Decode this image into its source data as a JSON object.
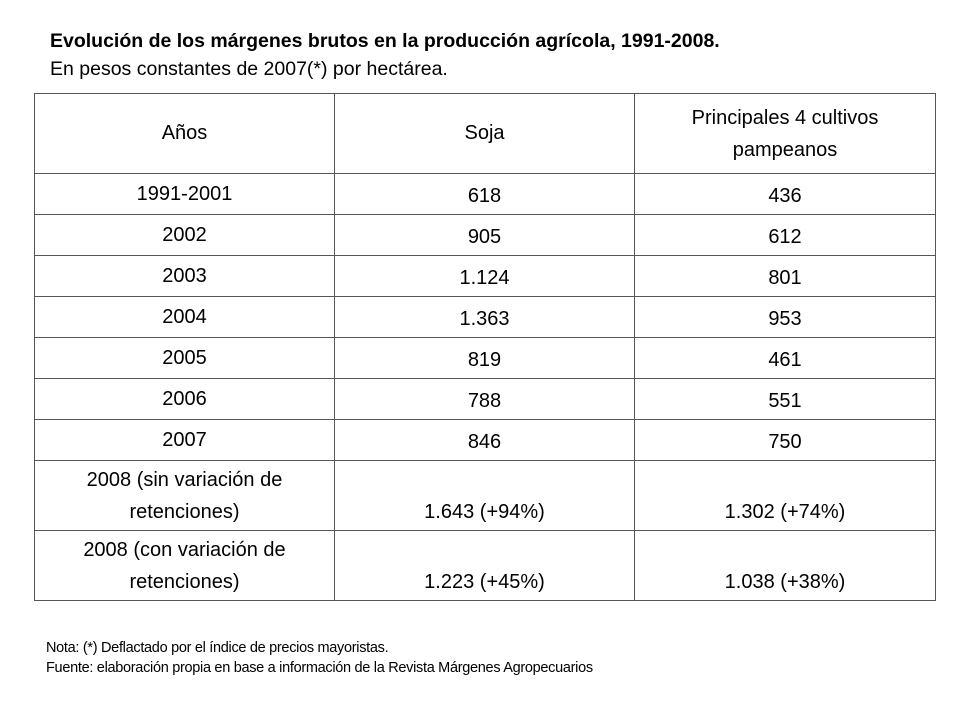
{
  "title": {
    "bold": "Evolución de los márgenes brutos en la producción agrícola, 1991-2008.",
    "subtitle": "En pesos constantes de 2007(*) por hectárea."
  },
  "table": {
    "headers": [
      "Años",
      "Soja",
      "Principales 4 cultivos pampeanos"
    ],
    "rows": [
      {
        "year": "1991-2001",
        "soja": "618",
        "cultivos": "436"
      },
      {
        "year": "2002",
        "soja": "905",
        "cultivos": "612"
      },
      {
        "year": "2003",
        "soja": "1.124",
        "cultivos": "801"
      },
      {
        "year": "2004",
        "soja": "1.363",
        "cultivos": "953"
      },
      {
        "year": "2005",
        "soja": "819",
        "cultivos": "461"
      },
      {
        "year": "2006",
        "soja": "788",
        "cultivos": "551"
      },
      {
        "year": "2007",
        "soja": "846",
        "cultivos": "750"
      },
      {
        "year": "2008 (sin variación de retenciones)",
        "soja": "1.643 (+94%)",
        "cultivos": "1.302 (+74%)"
      },
      {
        "year": "2008 (con variación de retenciones)",
        "soja": "1.223 (+45%)",
        "cultivos": "1.038 (+38%)"
      }
    ]
  },
  "notes": {
    "nota": "Nota: (*) Deflactado por el índice de precios mayoristas.",
    "fuente": "Fuente: elaboración propia en base a información de la Revista Márgenes Agropecuarios"
  }
}
